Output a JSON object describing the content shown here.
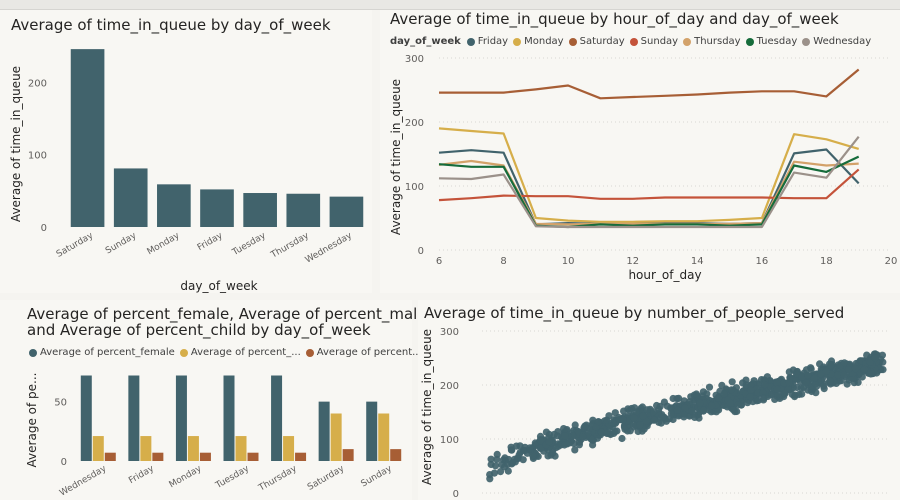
{
  "colors": {
    "teal": "#41636c",
    "gold": "#d6ae4a",
    "brown": "#a75e35",
    "friday": "#41636c",
    "monday": "#d6ae4a",
    "saturday": "#a75e35",
    "sunday": "#c4533a",
    "thursday": "#d3a26a",
    "tuesday": "#166c3b",
    "wednesday": "#9b918a"
  },
  "chart_data": [
    {
      "type": "bar",
      "title": "Average of time_in_queue by day_of_week",
      "xlabel": "day_of_week",
      "ylabel": "Average of time_in_queue",
      "categories": [
        "Saturday",
        "Sunday",
        "Monday",
        "Friday",
        "Tuesday",
        "Thursday",
        "Wednesday"
      ],
      "values": [
        246,
        81,
        59,
        52,
        47,
        46,
        42
      ],
      "ylim": [
        0,
        260
      ],
      "yticks": [
        "0",
        "100",
        "200"
      ]
    },
    {
      "type": "line",
      "title": "Average of time_in_queue by hour_of_day and day_of_week",
      "legend_title": "day_of_week",
      "xlabel": "hour_of_day",
      "ylabel": "Average of time_in_queue",
      "x": [
        6,
        7,
        8,
        9,
        10,
        11,
        12,
        13,
        14,
        15,
        16,
        17,
        18,
        19
      ],
      "xlim": [
        6,
        20
      ],
      "xticks": [
        "6",
        "8",
        "10",
        "12",
        "14",
        "16",
        "18",
        "20"
      ],
      "ylim": [
        0,
        300
      ],
      "yticks": [
        "0",
        "100",
        "200",
        "300"
      ],
      "series": [
        {
          "name": "Friday",
          "values": [
            152,
            156,
            152,
            40,
            42,
            41,
            41,
            42,
            42,
            41,
            42,
            151,
            157,
            104
          ]
        },
        {
          "name": "Monday",
          "values": [
            190,
            186,
            182,
            50,
            46,
            44,
            44,
            45,
            45,
            47,
            50,
            181,
            173,
            158
          ]
        },
        {
          "name": "Saturday",
          "values": [
            246,
            246,
            246,
            251,
            257,
            237,
            239,
            241,
            243,
            246,
            248,
            248,
            240,
            282
          ]
        },
        {
          "name": "Sunday",
          "values": [
            78,
            81,
            85,
            84,
            84,
            80,
            80,
            82,
            82,
            82,
            82,
            81,
            81,
            126
          ]
        },
        {
          "name": "Thursday",
          "values": [
            133,
            139,
            132,
            41,
            40,
            41,
            41,
            41,
            41,
            41,
            42,
            138,
            132,
            135
          ]
        },
        {
          "name": "Tuesday",
          "values": [
            134,
            130,
            130,
            38,
            36,
            40,
            38,
            40,
            40,
            38,
            40,
            132,
            122,
            146
          ]
        },
        {
          "name": "Wednesday",
          "values": [
            112,
            111,
            118,
            37,
            36,
            36,
            36,
            36,
            36,
            36,
            36,
            121,
            113,
            177
          ]
        }
      ]
    },
    {
      "type": "bar",
      "title_line1": "Average of percent_female, Average of percent_male",
      "title_line2": "and Average of percent_child by day_of_week",
      "ylabel": "Average of pe...",
      "categories": [
        "Wednesday",
        "Friday",
        "Monday",
        "Tuesday",
        "Thursday",
        "Saturday",
        "Sunday"
      ],
      "yticks": [
        "0",
        "50"
      ],
      "ylim": [
        0,
        80
      ],
      "series": [
        {
          "name": "Average of percent_female",
          "values": [
            72,
            72,
            72,
            72,
            72,
            50,
            50
          ]
        },
        {
          "name": "Average of percent_...",
          "values": [
            21,
            21,
            21,
            21,
            21,
            40,
            40
          ]
        },
        {
          "name": "Average of percent...",
          "values": [
            7,
            7,
            7,
            7,
            7,
            10,
            10
          ]
        }
      ]
    },
    {
      "type": "scatter",
      "title": "Average of time_in_queue by number_of_people_served",
      "ylabel": "Average of time_in_queue",
      "yticks": [
        "0",
        "100",
        "200",
        "300"
      ],
      "ylim": [
        0,
        300
      ],
      "trend": {
        "x_start": 0,
        "x_end": 1,
        "y_start": 35,
        "y_end": 240,
        "spread": 22,
        "count": 900
      }
    }
  ]
}
